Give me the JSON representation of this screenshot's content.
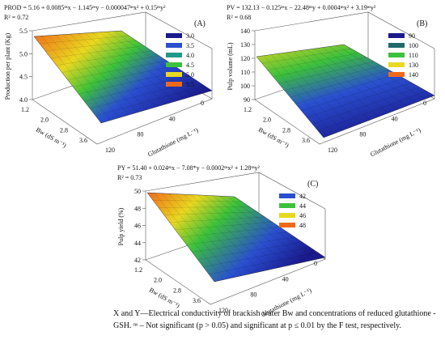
{
  "panels": [
    {
      "equation": "PROD = 5.16 + 0.0085ⁿˢx − 1.145ⁿˢy − 0.000047ⁿˢx² + 0.15ⁿˢy²",
      "r2": "R² = 0.72",
      "label": "(A)",
      "z_label": "Production per plant (Kg)",
      "z_ticks": [
        "5.5",
        "5.0",
        "4.5",
        "4.0"
      ],
      "bw_label": "Bw (dS m⁻¹)",
      "bw_ticks": [
        "1.2",
        "2.0",
        "2.8",
        "3.6"
      ],
      "gsh_label": "Glutathione (mg L⁻¹)",
      "gsh_ticks": [
        "120",
        "80",
        "40",
        "0"
      ],
      "legend": [
        {
          "label": "3.0",
          "color": "#1a1a8c"
        },
        {
          "label": "3.5",
          "color": "#2a4fd0"
        },
        {
          "label": "4.0",
          "color": "#1f9a8a"
        },
        {
          "label": "4.5",
          "color": "#3cc13c"
        },
        {
          "label": "5.0",
          "color": "#e8d820"
        },
        {
          "label": "5.5",
          "color": "#f06a1a"
        }
      ]
    },
    {
      "equation": "PV = 132.13 − 0.125ⁿˢx − 22.48ⁿˢy + 0.0004ⁿˢx² + 3.19ⁿˢy²",
      "r2": "R² = 0.68",
      "label": "(B)",
      "z_label": "Pulp volume (mL)",
      "z_ticks": [
        "140",
        "130",
        "120",
        "110",
        "100",
        "90"
      ],
      "bw_label": "Bw (dS m⁻¹)",
      "bw_ticks": [
        "1.2",
        "2.0",
        "2.8",
        "3.6"
      ],
      "gsh_label": "Glutathione (mg L⁻¹)",
      "gsh_ticks": [
        "120",
        "80",
        "40",
        "0"
      ],
      "legend": [
        {
          "label": "90",
          "color": "#1a1a8c"
        },
        {
          "label": "100",
          "color": "#1f6a6a"
        },
        {
          "label": "110",
          "color": "#3cc13c"
        },
        {
          "label": "130",
          "color": "#e8d820"
        },
        {
          "label": "140",
          "color": "#f06a1a"
        }
      ]
    },
    {
      "equation": "PY = 51.40 + 0.024ⁿˢx − 7.08*y − 0.0002ⁿˢx² + 1.28ⁿˢy²",
      "r2": "R² = 0.73",
      "label": "(C)",
      "z_label": "Pulp yield (%)",
      "z_ticks": [
        "50",
        "48",
        "46",
        "44",
        "42"
      ],
      "bw_label": "Bw (dS m⁻¹)",
      "bw_ticks": [
        "1.2",
        "2.0",
        "2.8",
        "3.6"
      ],
      "gsh_label": "Glutathione (mg L⁻¹)",
      "gsh_ticks": [
        "120",
        "80",
        "40",
        "0"
      ],
      "legend": [
        {
          "label": "42",
          "color": "#2a4fd0"
        },
        {
          "label": "44",
          "color": "#3cc13c"
        },
        {
          "label": "46",
          "color": "#e8d820"
        },
        {
          "label": "48",
          "color": "#f06a1a"
        }
      ]
    }
  ],
  "caption": [
    "X and Y—Electrical conductivity of brackish water Bw and concentrations of reduced glutathione -",
    "GSH. ⁿˢ – Not significant (p > 0.05) and significant at p ≤ 0.01 by the F test, respectively."
  ]
}
